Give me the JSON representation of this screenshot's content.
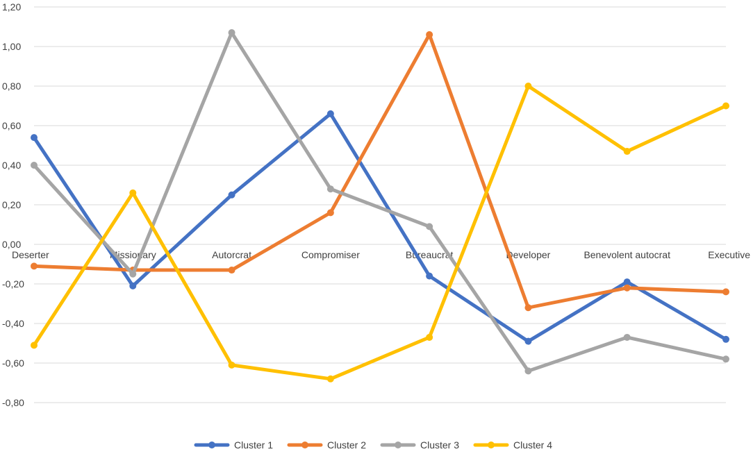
{
  "chart_data": {
    "type": "line",
    "categories": [
      "Deserter",
      "Missionary",
      "Autorcrat",
      "Compromiser",
      "Bureaucrat",
      "Developer",
      "Benevolent autocrat",
      "Executive"
    ],
    "ylim": [
      -0.8,
      1.2
    ],
    "ytick_values": [
      1.2,
      1.0,
      0.8,
      0.6,
      0.4,
      0.2,
      0.0,
      -0.2,
      -0.4,
      -0.6,
      -0.8
    ],
    "ytick_labels": [
      "1,20",
      "1,00",
      "0,80",
      "0,60",
      "0,40",
      "0,20",
      "0,00",
      "-0,20",
      "-0,40",
      "-0,60",
      "-0,80"
    ],
    "grid": true,
    "legend_position": "bottom",
    "series": [
      {
        "name": "Cluster 1",
        "color": "#4472c4",
        "values": [
          0.54,
          -0.21,
          0.25,
          0.66,
          -0.16,
          -0.49,
          -0.19,
          -0.48
        ]
      },
      {
        "name": "Cluster 2",
        "color": "#ed7d31",
        "values": [
          -0.11,
          -0.13,
          -0.13,
          0.16,
          1.06,
          -0.32,
          -0.22,
          -0.24
        ]
      },
      {
        "name": "Cluster 3",
        "color": "#a5a5a5",
        "values": [
          0.4,
          -0.15,
          1.07,
          0.28,
          0.09,
          -0.64,
          -0.47,
          -0.58
        ]
      },
      {
        "name": "Cluster 4",
        "color": "#ffc000",
        "values": [
          -0.51,
          0.26,
          -0.61,
          -0.68,
          -0.47,
          0.8,
          0.47,
          0.7
        ]
      }
    ]
  }
}
